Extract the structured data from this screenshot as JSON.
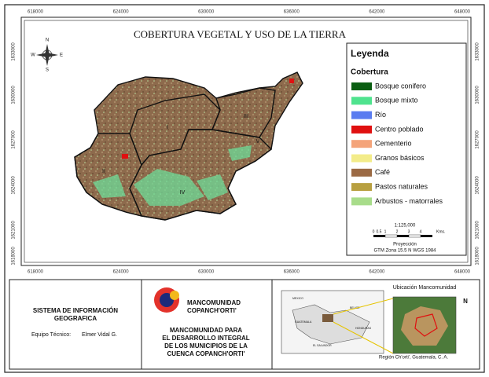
{
  "map": {
    "title": "COBERTURA VEGETAL Y USO DE LA TIERRA",
    "compass": [
      "N",
      "E",
      "S",
      "W"
    ],
    "x_ticks": [
      "618000",
      "624000",
      "630000",
      "636000",
      "642000",
      "648000"
    ],
    "y_ticks": [
      "1633000",
      "1630000",
      "1627000",
      "1624000",
      "1621000",
      "1618000"
    ],
    "regions": [
      "I",
      "II",
      "III",
      "IV",
      "V"
    ]
  },
  "legend": {
    "title": "Leyenda",
    "subtitle": "Cobertura",
    "items": [
      {
        "label": "Bosque conifero",
        "color": "#0b5e12"
      },
      {
        "label": "Bosque mixto",
        "color": "#4fe38e"
      },
      {
        "label": "Río",
        "color": "#5a7cf0"
      },
      {
        "label": "Centro poblado",
        "color": "#e01010"
      },
      {
        "label": "Cementerio",
        "color": "#f4a47a"
      },
      {
        "label": "Granos básicos",
        "color": "#f3ec8a"
      },
      {
        "label": "Café",
        "color": "#9b6a44"
      },
      {
        "label": "Pastos naturales",
        "color": "#b8a040"
      },
      {
        "label": "Arbustos - matorrales",
        "color": "#a8dc8a"
      }
    ],
    "scale": "1:125,000",
    "scale_labels": [
      "0",
      "0.5",
      "1",
      "2",
      "3",
      "4",
      "Kms."
    ],
    "projection": [
      "Proyección",
      "GTM Zona 15.5 N WGS 1984"
    ]
  },
  "footer": {
    "system": [
      "SISTEMA DE INFORMACIÓN",
      "GEOGRAFICA"
    ],
    "team_label": "Equipo Técnico:",
    "team_name": "Elmer Vidal G.",
    "logo": [
      "MANCOMUNIDAD",
      "COPANCH'ORTI'"
    ],
    "organization": [
      "MANCOMUNIDAD PARA",
      "EL DESARROLLO INTEGRAL",
      "DE LOS MUNICIPIOS DE LA",
      "CUENCA COPANCH'ORTI'"
    ],
    "inset_title": "Ubicación Mancomunidad",
    "inset_countries": [
      "MEXICO",
      "BELICE",
      "GUATEMALA",
      "HONDURAS",
      "EL SALVADOR"
    ],
    "north": "N",
    "inset_caption": "Región Ch'orti', Guatemala, C. A."
  }
}
